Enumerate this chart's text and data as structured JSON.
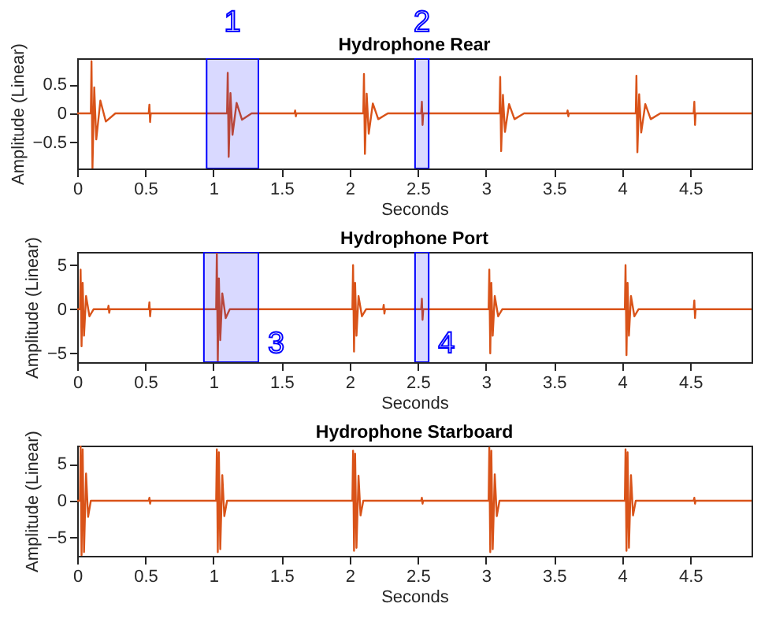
{
  "chart_data": [
    {
      "type": "line",
      "title": "Hydrophone Rear",
      "xlabel": "Seconds",
      "ylabel": "Amplitude (Linear)",
      "xlim": [
        0,
        4.95
      ],
      "ylim": [
        -0.95,
        0.95
      ],
      "xticks": [
        0,
        0.5,
        1,
        1.5,
        2,
        2.5,
        3,
        3.5,
        4,
        4.5
      ],
      "yticks": [
        -0.5,
        0,
        0.5
      ],
      "x": [
        0,
        0.1,
        0.105,
        0.112,
        0.125,
        0.14,
        0.17,
        0.21,
        0.28,
        0.525,
        0.53,
        0.535,
        0.54,
        1.1,
        1.105,
        1.112,
        1.125,
        1.14,
        1.17,
        1.21,
        1.28,
        1.595,
        1.6,
        1.605,
        1.61,
        2.1,
        2.105,
        2.112,
        2.125,
        2.14,
        2.17,
        2.21,
        2.28,
        2.525,
        2.53,
        2.535,
        2.54,
        3.1,
        3.105,
        3.112,
        3.125,
        3.14,
        3.17,
        3.21,
        3.28,
        3.595,
        3.6,
        3.605,
        3.61,
        4.1,
        4.105,
        4.112,
        4.125,
        4.14,
        4.17,
        4.21,
        4.28,
        4.525,
        4.53,
        4.535,
        4.54,
        4.95
      ],
      "series": [
        {
          "color": "#d95319",
          "values": [
            0,
            0,
            0.9,
            -0.95,
            0.45,
            -0.45,
            0.22,
            -0.14,
            0,
            0,
            0.15,
            -0.15,
            0,
            0,
            0.7,
            -0.75,
            0.35,
            -0.37,
            0.18,
            -0.11,
            0,
            0,
            0.05,
            -0.05,
            0,
            0,
            0.68,
            -0.7,
            0.34,
            -0.35,
            0.17,
            -0.1,
            0,
            0,
            0.2,
            -0.2,
            0,
            0,
            0.63,
            -0.65,
            0.32,
            -0.32,
            0.16,
            -0.1,
            0,
            0,
            0.05,
            -0.05,
            0,
            0,
            0.65,
            -0.67,
            0.33,
            -0.33,
            0.16,
            -0.1,
            0,
            0,
            0.2,
            -0.2,
            0,
            0
          ]
        }
      ],
      "bands": [
        {
          "axis": "x",
          "from": 0.95,
          "to": 1.33,
          "label": "1",
          "color": "#0000ff"
        },
        {
          "axis": "x",
          "from": 2.48,
          "to": 2.58,
          "label": "2",
          "color": "#0000ff"
        }
      ]
    },
    {
      "type": "line",
      "title": "Hydrophone Port",
      "xlabel": "Seconds",
      "ylabel": "Amplitude (Linear)",
      "xlim": [
        0,
        4.95
      ],
      "ylim": [
        -6,
        6.5
      ],
      "xticks": [
        0,
        0.5,
        1,
        1.5,
        2,
        2.5,
        3,
        3.5,
        4,
        4.5
      ],
      "yticks": [
        -5,
        0,
        5
      ],
      "x": [
        0,
        0.02,
        0.025,
        0.032,
        0.04,
        0.05,
        0.065,
        0.09,
        0.12,
        0.225,
        0.23,
        0.235,
        0.24,
        0.525,
        0.53,
        0.535,
        0.54,
        1.02,
        1.025,
        1.032,
        1.04,
        1.05,
        1.065,
        1.09,
        1.12,
        2.02,
        2.025,
        2.032,
        2.04,
        2.05,
        2.065,
        2.09,
        2.12,
        2.245,
        2.25,
        2.255,
        2.26,
        2.525,
        2.53,
        2.535,
        2.54,
        3.02,
        3.025,
        3.032,
        3.04,
        3.05,
        3.065,
        3.09,
        3.12,
        4.02,
        4.025,
        4.032,
        4.04,
        4.05,
        4.065,
        4.09,
        4.12,
        4.525,
        4.53,
        4.535,
        4.54,
        4.95
      ],
      "series": [
        {
          "color": "#d95319",
          "values": [
            0,
            0,
            4.5,
            -4.2,
            3,
            -3,
            1.5,
            -0.8,
            0,
            0,
            0.4,
            -0.4,
            0,
            0,
            0.8,
            -0.8,
            0,
            0,
            6.5,
            -6,
            3.5,
            -3.5,
            1.8,
            -1,
            0,
            0,
            5,
            -4.8,
            3,
            -3,
            1.5,
            -0.8,
            0,
            0,
            0.5,
            -0.5,
            0,
            0,
            1.2,
            -1.2,
            0,
            0,
            4.5,
            -5,
            3,
            -3,
            1.5,
            -0.8,
            0,
            0,
            5,
            -5.2,
            3,
            -3,
            1.5,
            -0.8,
            0,
            0,
            1,
            -1,
            0,
            0
          ]
        }
      ],
      "bands": [
        {
          "axis": "x",
          "from": 0.93,
          "to": 1.33,
          "label": "3",
          "color": "#0000ff"
        },
        {
          "axis": "x",
          "from": 2.48,
          "to": 2.58,
          "label": "4",
          "color": "#0000ff"
        }
      ]
    },
    {
      "type": "line",
      "title": "Hydrophone Starboard",
      "xlabel": "Seconds",
      "ylabel": "Amplitude (Linear)",
      "xlim": [
        0,
        4.95
      ],
      "ylim": [
        -7.5,
        7.5
      ],
      "xticks": [
        0,
        0.5,
        1,
        1.5,
        2,
        2.5,
        3,
        3.5,
        4,
        4.5
      ],
      "yticks": [
        -5,
        0,
        5
      ],
      "x": [
        0,
        0.02,
        0.025,
        0.032,
        0.04,
        0.05,
        0.065,
        0.08,
        0.1,
        0.525,
        0.53,
        0.535,
        0.54,
        1.02,
        1.025,
        1.032,
        1.04,
        1.05,
        1.065,
        1.08,
        1.1,
        2.02,
        2.025,
        2.032,
        2.04,
        2.05,
        2.065,
        2.08,
        2.1,
        2.525,
        2.53,
        2.535,
        2.54,
        3.02,
        3.025,
        3.032,
        3.04,
        3.05,
        3.065,
        3.08,
        3.1,
        4.02,
        4.025,
        4.032,
        4.04,
        4.05,
        4.065,
        4.08,
        4.1,
        4.525,
        4.53,
        4.535,
        4.54,
        4.95
      ],
      "series": [
        {
          "color": "#d95319",
          "values": [
            0,
            0,
            7.4,
            -7.4,
            7,
            -7,
            3.7,
            -2.2,
            0,
            0,
            0.4,
            -0.4,
            0,
            0,
            7,
            -7,
            6.6,
            -6.6,
            3.5,
            -2.1,
            0,
            0,
            6.8,
            -6.8,
            6.4,
            -6.4,
            3.4,
            -2,
            0,
            0,
            0.4,
            -0.4,
            0,
            0,
            7.2,
            -7,
            6.8,
            -6.6,
            3.6,
            -2.1,
            0,
            0,
            7,
            -6.8,
            6.6,
            -6.4,
            3.5,
            -2,
            0,
            0,
            0.4,
            -0.4,
            0,
            0
          ]
        }
      ]
    }
  ]
}
